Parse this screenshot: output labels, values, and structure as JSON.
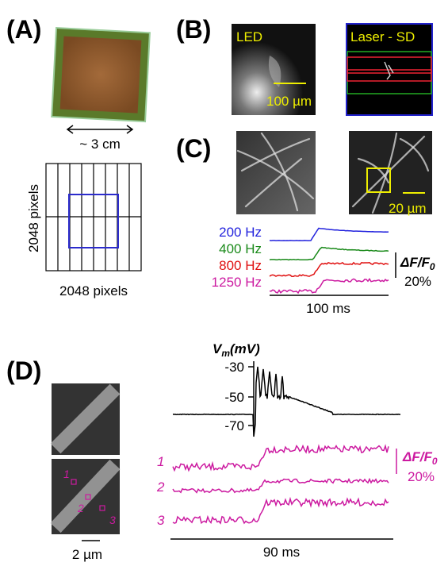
{
  "figure": {
    "panel_labels": [
      "(A)",
      "(B)",
      "(C)",
      "(D)"
    ],
    "panel_a": {
      "chip_size": "~ 3 cm",
      "sensor_height": "2048 pixels",
      "sensor_width": "2048 pixels"
    },
    "panel_b": {
      "left_label": "LED",
      "scale_bar": "100 µm",
      "right_label": "Laser - SD"
    },
    "panel_c": {
      "scale_bar": "20 µm",
      "rates": [
        "200 Hz",
        "400 Hz",
        "800 Hz",
        "1250 Hz"
      ],
      "amplitude_label": {
        "main": "ΔF/F",
        "sub": "0"
      },
      "amplitude_value": "20%",
      "time_bar": "100 ms"
    },
    "panel_d": {
      "voltage_label": {
        "main": "V",
        "sub": "m",
        "unit": "(mV)"
      },
      "voltage_ticks": [
        "-30",
        "-50",
        "-70"
      ],
      "sites": [
        "1",
        "2",
        "3"
      ],
      "amplitude_label": {
        "main": "ΔF/F",
        "sub": "0"
      },
      "amplitude_value": "20%",
      "time_bar": "90 ms",
      "scale_bar": "2 µm"
    }
  }
}
